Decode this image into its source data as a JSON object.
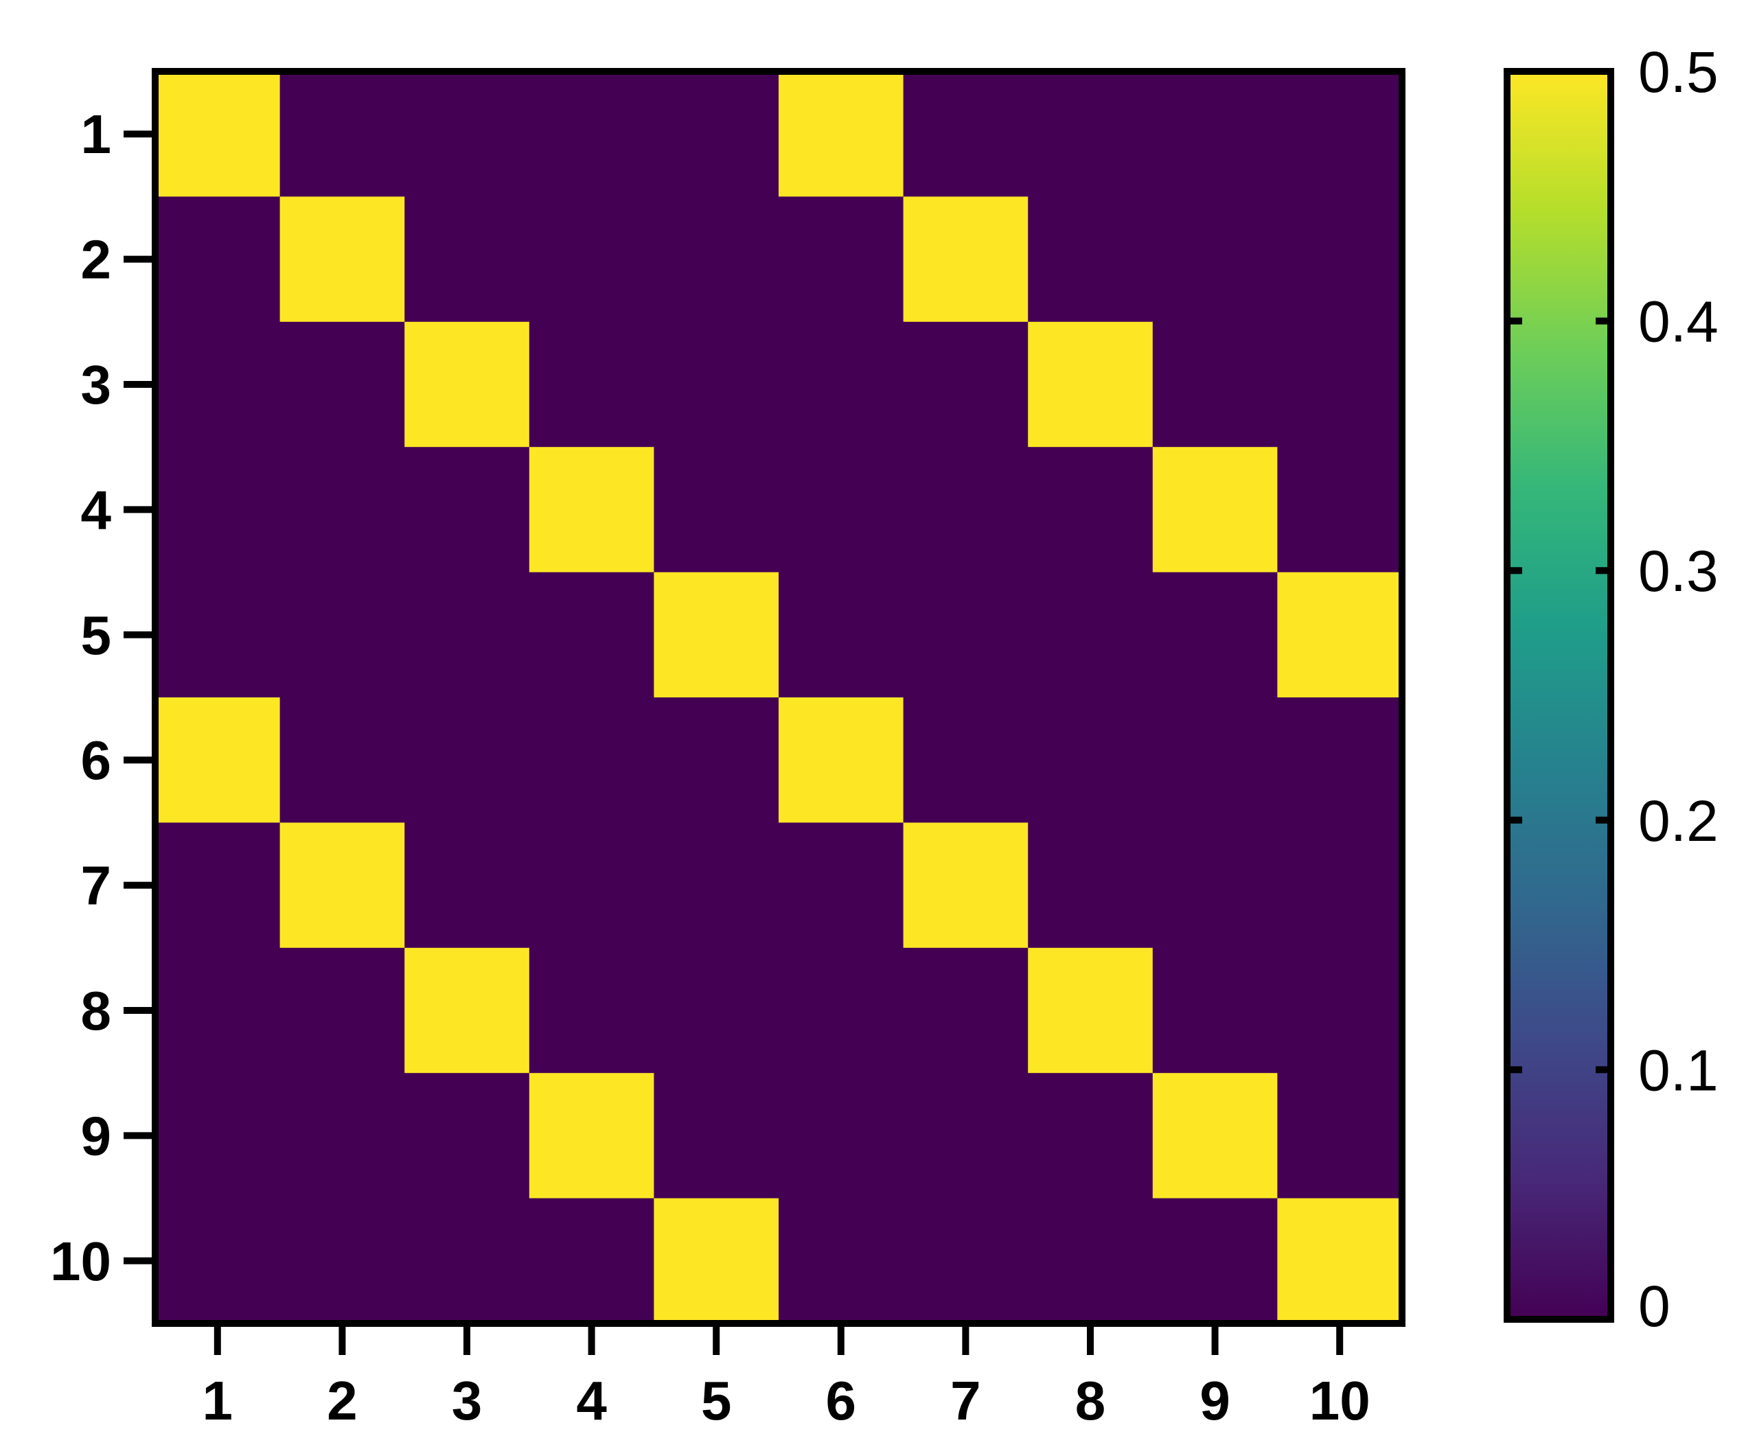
{
  "chart_data": {
    "type": "heatmap",
    "title": "",
    "xlabel": "",
    "ylabel": "",
    "x_categories": [
      "1",
      "2",
      "3",
      "4",
      "5",
      "6",
      "7",
      "8",
      "9",
      "10"
    ],
    "y_categories": [
      "1",
      "2",
      "3",
      "4",
      "5",
      "6",
      "7",
      "8",
      "9",
      "10"
    ],
    "values": [
      [
        0.5,
        0,
        0,
        0,
        0,
        0.5,
        0,
        0,
        0,
        0
      ],
      [
        0,
        0.5,
        0,
        0,
        0,
        0,
        0.5,
        0,
        0,
        0
      ],
      [
        0,
        0,
        0.5,
        0,
        0,
        0,
        0,
        0.5,
        0,
        0
      ],
      [
        0,
        0,
        0,
        0.5,
        0,
        0,
        0,
        0,
        0.5,
        0
      ],
      [
        0,
        0,
        0,
        0,
        0.5,
        0,
        0,
        0,
        0,
        0.5
      ],
      [
        0.5,
        0,
        0,
        0,
        0,
        0.5,
        0,
        0,
        0,
        0
      ],
      [
        0,
        0.5,
        0,
        0,
        0,
        0,
        0.5,
        0,
        0,
        0
      ],
      [
        0,
        0,
        0.5,
        0,
        0,
        0,
        0,
        0.5,
        0,
        0
      ],
      [
        0,
        0,
        0,
        0.5,
        0,
        0,
        0,
        0,
        0.5,
        0
      ],
      [
        0,
        0,
        0,
        0,
        0.5,
        0,
        0,
        0,
        0,
        0.5
      ]
    ],
    "colormap": "viridis",
    "colormap_stops": [
      "#440154",
      "#482878",
      "#3e4989",
      "#31688e",
      "#26828e",
      "#1f9e89",
      "#35b779",
      "#6ece58",
      "#b5de2b",
      "#fde725"
    ],
    "colorbar": {
      "range": [
        0,
        0.5
      ],
      "ticks": [
        0,
        0.1,
        0.2,
        0.3,
        0.4,
        0.5
      ],
      "tick_labels": [
        "0",
        "0.1",
        "0.2",
        "0.3",
        "0.4",
        "0.5"
      ],
      "placement": "right"
    },
    "grid": false
  }
}
